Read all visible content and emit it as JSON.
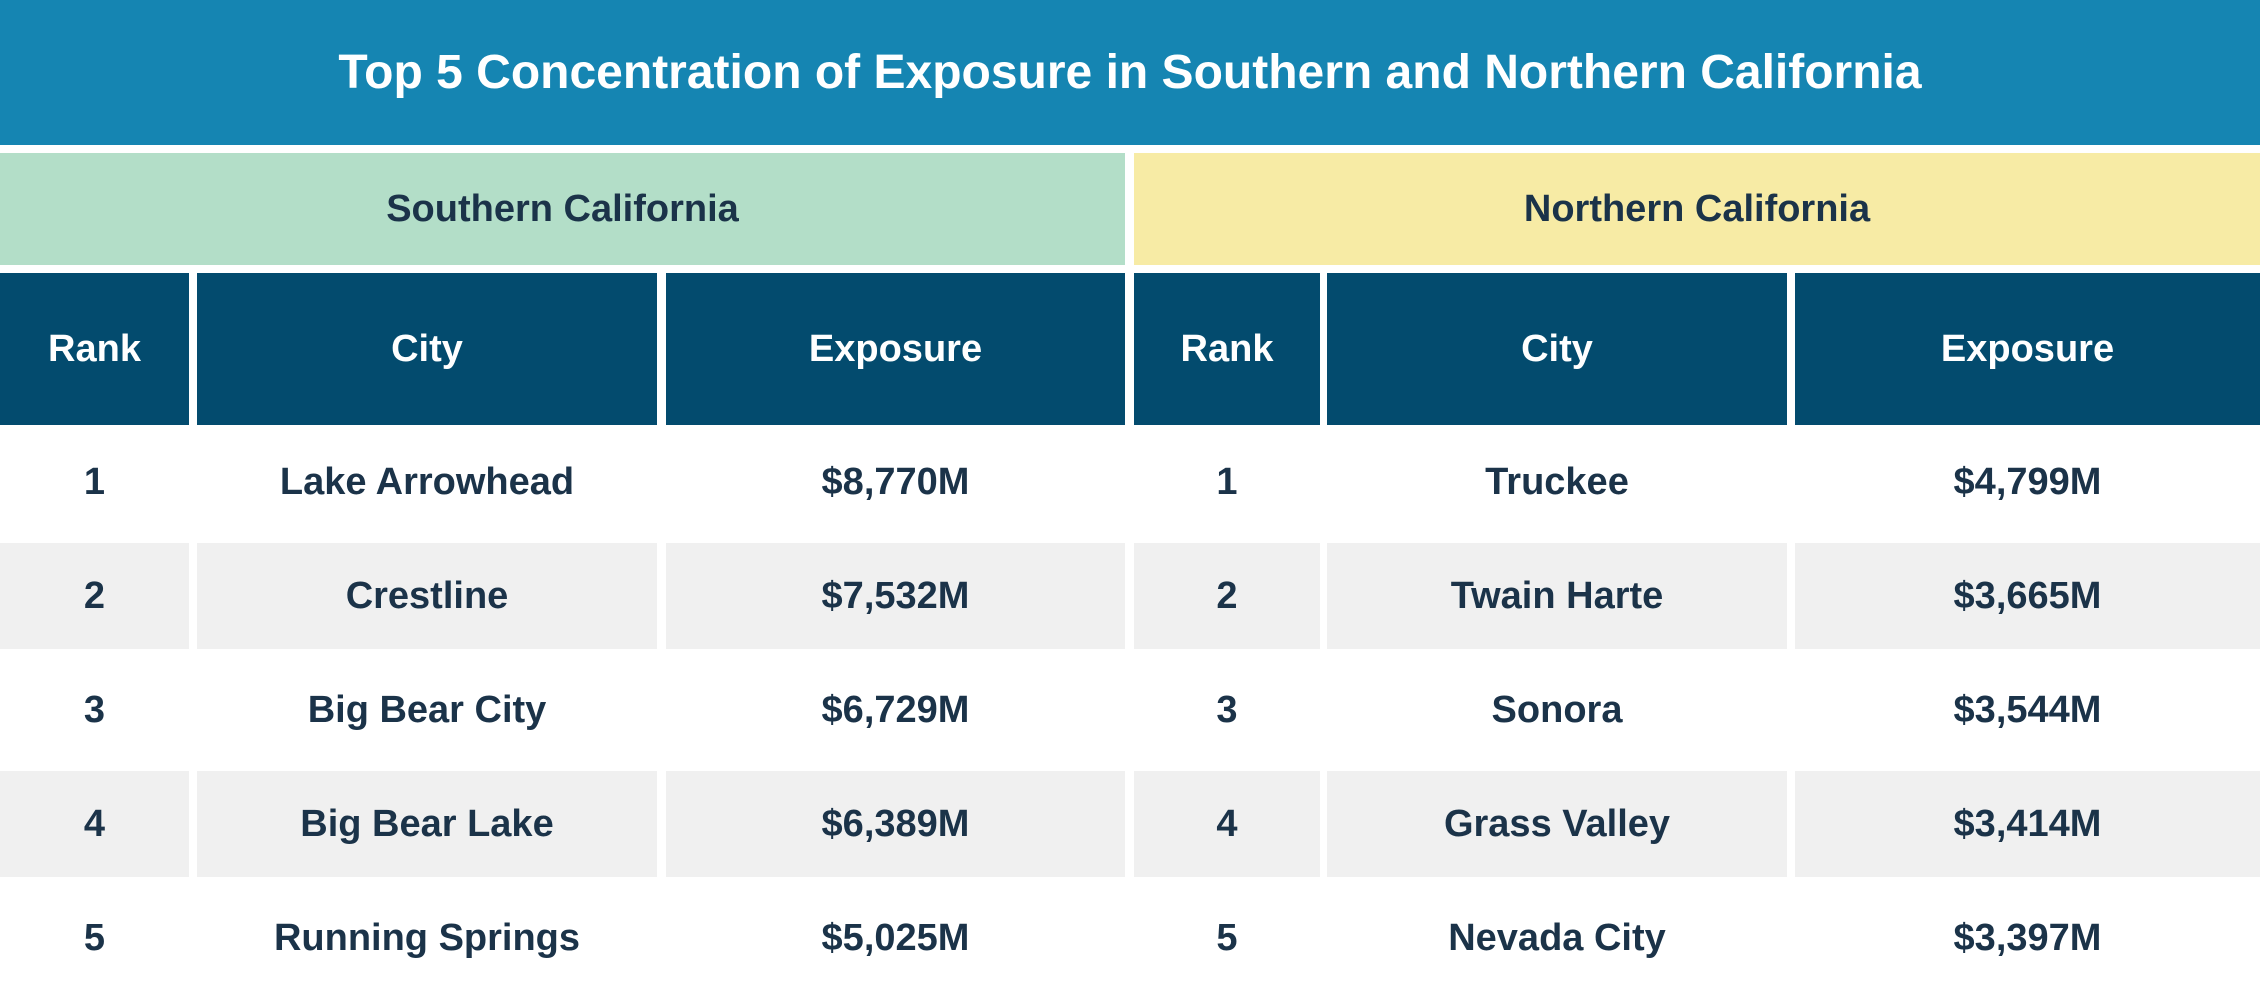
{
  "title": "Top 5 Concentration of Exposure in Southern and Northern California",
  "colors": {
    "title_bg": "#1585b2",
    "south_bg": "#b3dec8",
    "north_bg": "#f7eba5",
    "header_bg": "#034b6e",
    "alt_row_bg": "#f0f0f0",
    "text": "#1b3349"
  },
  "columns": [
    "Rank",
    "City",
    "Exposure"
  ],
  "south": {
    "label": "Southern California",
    "rows": [
      {
        "rank": "1",
        "city": "Lake Arrowhead",
        "exposure": "$8,770M"
      },
      {
        "rank": "2",
        "city": "Crestline",
        "exposure": "$7,532M"
      },
      {
        "rank": "3",
        "city": "Big Bear City",
        "exposure": "$6,729M"
      },
      {
        "rank": "4",
        "city": "Big Bear Lake",
        "exposure": "$6,389M"
      },
      {
        "rank": "5",
        "city": "Running Springs",
        "exposure": "$5,025M"
      }
    ]
  },
  "north": {
    "label": "Northern California",
    "rows": [
      {
        "rank": "1",
        "city": "Truckee",
        "exposure": "$4,799M"
      },
      {
        "rank": "2",
        "city": "Twain Harte",
        "exposure": "$3,665M"
      },
      {
        "rank": "3",
        "city": "Sonora",
        "exposure": "$3,544M"
      },
      {
        "rank": "4",
        "city": "Grass Valley",
        "exposure": "$3,414M"
      },
      {
        "rank": "5",
        "city": "Nevada City",
        "exposure": "$3,397M"
      }
    ]
  }
}
